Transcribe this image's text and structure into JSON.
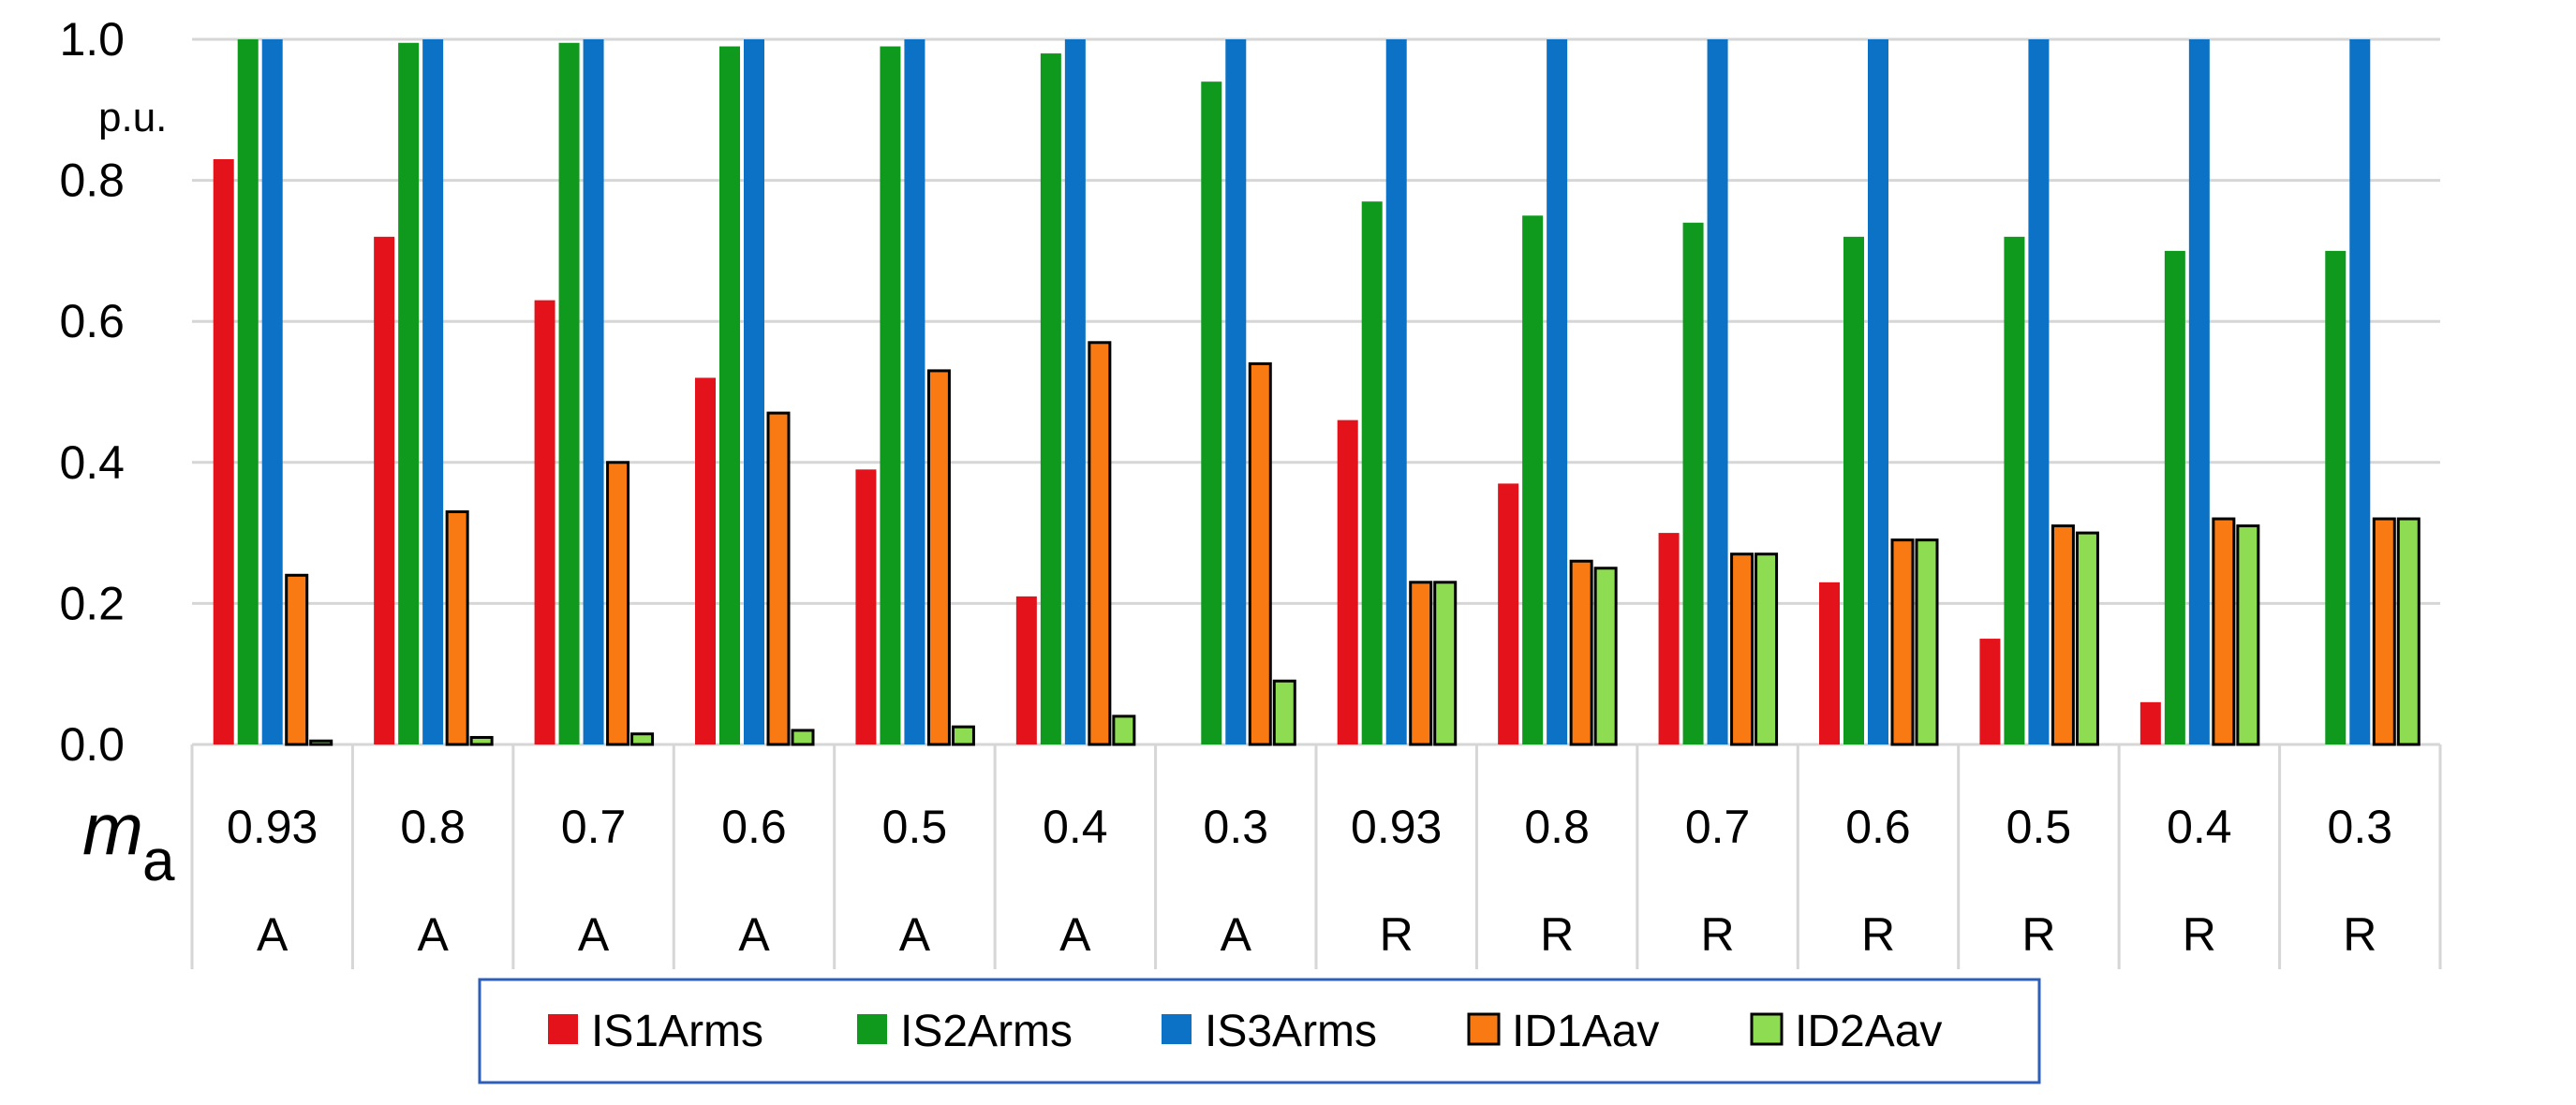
{
  "chart_data": {
    "type": "bar",
    "ylim": [
      0,
      1.0
    ],
    "yticks": [
      "0.0",
      "0.2",
      "0.4",
      "0.6",
      "0.8",
      "1.0"
    ],
    "ylabel_unit": "p.u.",
    "xlabel_main": "m",
    "xlabel_sub": "a",
    "grid": true,
    "legend_position": "bottom",
    "categories": [
      "0.93",
      "0.8",
      "0.7",
      "0.6",
      "0.5",
      "0.4",
      "0.3",
      "0.93",
      "0.8",
      "0.7",
      "0.6",
      "0.5",
      "0.4",
      "0.3"
    ],
    "groups": [
      "A",
      "A",
      "A",
      "A",
      "A",
      "A",
      "A",
      "R",
      "R",
      "R",
      "R",
      "R",
      "R",
      "R"
    ],
    "series": [
      {
        "name": "IS1Arms",
        "color": "#e4131b",
        "outlined": false,
        "values": [
          0.83,
          0.72,
          0.63,
          0.52,
          0.39,
          0.21,
          0.0,
          0.46,
          0.37,
          0.3,
          0.23,
          0.15,
          0.06,
          0.0
        ]
      },
      {
        "name": "IS2Arms",
        "color": "#0f9a1e",
        "outlined": false,
        "values": [
          1.0,
          0.995,
          0.995,
          0.99,
          0.99,
          0.98,
          0.94,
          0.77,
          0.75,
          0.74,
          0.72,
          0.72,
          0.7,
          0.7
        ]
      },
      {
        "name": "IS3Arms",
        "color": "#0b72c6",
        "outlined": false,
        "values": [
          1.0,
          1.0,
          1.0,
          1.0,
          1.0,
          1.0,
          1.0,
          1.0,
          1.0,
          1.0,
          1.0,
          1.0,
          1.0,
          1.0
        ]
      },
      {
        "name": "ID1Aav",
        "color": "#f97a13",
        "outlined": true,
        "values": [
          0.24,
          0.33,
          0.4,
          0.47,
          0.53,
          0.57,
          0.54,
          0.23,
          0.26,
          0.27,
          0.29,
          0.31,
          0.32,
          0.32
        ]
      },
      {
        "name": "ID2Aav",
        "color": "#8ddc52",
        "outlined": true,
        "values": [
          0.005,
          0.01,
          0.015,
          0.02,
          0.025,
          0.04,
          0.09,
          0.23,
          0.25,
          0.27,
          0.29,
          0.3,
          0.31,
          0.32
        ]
      }
    ]
  }
}
